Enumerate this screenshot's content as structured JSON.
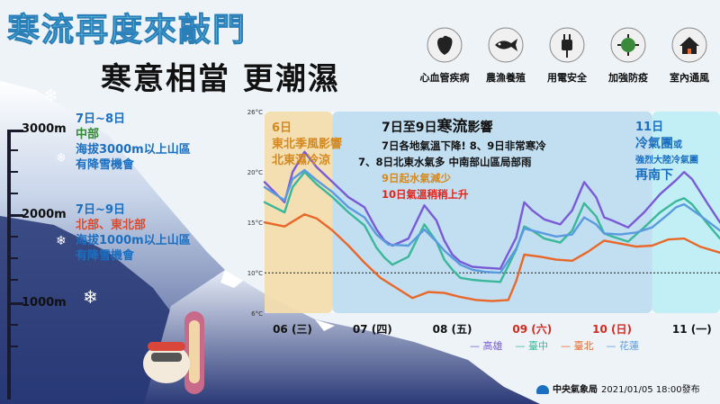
{
  "headline": {
    "main": "寒流再度來敲門",
    "sub": "寒意相當  更潮濕"
  },
  "icons": [
    {
      "label": "心血管疾病",
      "icon": "heart-organ-icon"
    },
    {
      "label": "農漁養殖",
      "icon": "fish-icon"
    },
    {
      "label": "用電安全",
      "icon": "plug-icon"
    },
    {
      "label": "加強防疫",
      "icon": "virus-icon"
    },
    {
      "label": "室內通風",
      "icon": "house-icon"
    }
  ],
  "altitudes": {
    "a3000": "3000m",
    "a2000": "2000m",
    "a1000": "1000m"
  },
  "snow_notes": {
    "n1_date": "7日~8日",
    "n1_region": "中部",
    "n1_line1": "海拔3000m以上山區",
    "n1_line2": "有降雪機會",
    "n2_date": "7日~9日",
    "n2_region": "北部、東北部",
    "n2_line1": "海拔1000m以上山區",
    "n2_line2": "有降雪機會"
  },
  "bands": {
    "b1_date": "6日",
    "b1_l1": "東北季風影響",
    "b1_l2": "北東濕冷涼",
    "b2_title_a": "7日至9日",
    "b2_title_b": "寒流",
    "b2_title_c": "影響",
    "b2_l1": "7日各地氣溫下降! 8、9日非常寒冷",
    "b2_l2": "7、8日北東水氣多  中南部山區局部雨",
    "b2_l3": "9日起水氣減少",
    "b2_l4": "10日氣溫稍稍上升",
    "b3_date": "11日",
    "b3_l1a": "冷氣團",
    "b3_l1b": "或",
    "b3_l2": "強烈大陸冷氣團",
    "b3_l3": "再南下"
  },
  "footer": {
    "agency": "中央氣象局",
    "issued": "2021/01/05 18:00發布"
  },
  "colors": {
    "kaohsiung": "#7a5bd6",
    "taichung": "#3ab89a",
    "taipei": "#e8682a",
    "hualien": "#5a9be0"
  },
  "chart_data": {
    "type": "line",
    "title": "",
    "xlabel": "",
    "ylabel": "",
    "x_ticks": [
      "06 (三)",
      "07 (四)",
      "08 (五)",
      "09 (六)",
      "10 (日)",
      "11 (一)"
    ],
    "x_tick_colors": [
      "#111111",
      "#111111",
      "#111111",
      "#d12a1f",
      "#d12a1f",
      "#111111"
    ],
    "y_ticks": [
      "26°C",
      "20°C",
      "15°C",
      "10°C",
      "6°C"
    ],
    "y_tick_values": [
      26,
      20,
      15,
      10,
      6
    ],
    "xlim": [
      5.75,
      11.45
    ],
    "ylim": [
      6,
      26
    ],
    "reference_line": 10,
    "highlight_bands": [
      {
        "from": 5.75,
        "to": 6.6,
        "color": "#f3d9a6"
      },
      {
        "from": 6.6,
        "to": 10.6,
        "color": "#b8d8ef"
      },
      {
        "from": 10.6,
        "to": 11.45,
        "color": "#b9ecf3"
      }
    ],
    "series": [
      {
        "name": "高雄",
        "color": "#7a5bd6",
        "x": [
          5.75,
          6.0,
          6.1,
          6.25,
          6.4,
          6.6,
          6.8,
          7.0,
          7.15,
          7.25,
          7.35,
          7.55,
          7.75,
          7.9,
          8.0,
          8.1,
          8.2,
          8.35,
          8.5,
          8.7,
          8.9,
          9.0,
          9.1,
          9.25,
          9.45,
          9.6,
          9.75,
          9.9,
          10.0,
          10.1,
          10.3,
          10.5,
          10.7,
          10.9,
          11.0,
          11.1,
          11.3,
          11.45
        ],
        "y": [
          19,
          17,
          20,
          22,
          20.5,
          19,
          17.5,
          16.5,
          14.3,
          13.2,
          12.7,
          13.4,
          16.7,
          15.2,
          13.2,
          11.8,
          11.1,
          10.6,
          10.5,
          10.4,
          13.5,
          17,
          16.2,
          15.3,
          14.8,
          16.2,
          19,
          17.5,
          15.5,
          15.2,
          14.5,
          16,
          17.8,
          19.2,
          20,
          19.3,
          16.8,
          15
        ]
      },
      {
        "name": "臺中",
        "color": "#3ab89a",
        "x": [
          5.75,
          6.0,
          6.1,
          6.25,
          6.4,
          6.6,
          6.8,
          7.0,
          7.15,
          7.25,
          7.35,
          7.55,
          7.75,
          7.9,
          8.0,
          8.1,
          8.2,
          8.35,
          8.5,
          8.7,
          8.9,
          9.0,
          9.1,
          9.25,
          9.45,
          9.6,
          9.75,
          9.9,
          10.0,
          10.1,
          10.3,
          10.5,
          10.7,
          10.9,
          11.0,
          11.1,
          11.3,
          11.45
        ],
        "y": [
          17,
          16,
          18.5,
          20,
          18.8,
          17.5,
          16,
          14.7,
          12.5,
          11.5,
          10.8,
          11.6,
          14.8,
          13.1,
          11.3,
          10.3,
          9.5,
          9.3,
          9.2,
          9.1,
          12.3,
          14.6,
          14.2,
          13.4,
          13,
          14.2,
          16.9,
          15.6,
          13.9,
          13.6,
          13.1,
          14.5,
          16,
          17.1,
          17.4,
          16.8,
          14.8,
          13.4
        ]
      },
      {
        "name": "臺北",
        "color": "#e8682a",
        "x": [
          5.75,
          6.0,
          6.25,
          6.4,
          6.6,
          6.8,
          7.0,
          7.2,
          7.4,
          7.6,
          7.8,
          8.0,
          8.2,
          8.4,
          8.6,
          8.8,
          8.9,
          9.0,
          9.2,
          9.4,
          9.6,
          9.8,
          10.0,
          10.2,
          10.4,
          10.6,
          10.8,
          11.0,
          11.2,
          11.45
        ],
        "y": [
          15,
          14.6,
          15.8,
          15.4,
          14.2,
          12.7,
          11,
          9.5,
          8.5,
          7.5,
          8.1,
          8,
          7.6,
          7.3,
          7.2,
          7.3,
          9.2,
          11.8,
          11.6,
          11.3,
          11.2,
          12.1,
          13.2,
          12.9,
          12.6,
          12.7,
          13.3,
          13.4,
          12.6,
          12
        ]
      },
      {
        "name": "花蓮",
        "color": "#5a9be0",
        "x": [
          5.75,
          6.0,
          6.1,
          6.25,
          6.4,
          6.6,
          6.8,
          7.0,
          7.15,
          7.3,
          7.55,
          7.75,
          7.9,
          8.0,
          8.2,
          8.35,
          8.5,
          8.7,
          8.9,
          9.0,
          9.2,
          9.4,
          9.6,
          9.75,
          9.9,
          10.0,
          10.2,
          10.4,
          10.6,
          10.8,
          10.9,
          11.0,
          11.2,
          11.45
        ],
        "y": [
          18.5,
          17.2,
          19.3,
          20.2,
          19.2,
          18,
          16.5,
          15.5,
          13.8,
          12.8,
          12.7,
          14.3,
          13.1,
          12.2,
          10.8,
          10.3,
          10.1,
          10,
          12.4,
          14.4,
          14,
          13.6,
          13.8,
          15.5,
          14.8,
          13.9,
          13.8,
          14,
          14.5,
          15.8,
          16.5,
          16.8,
          15.7,
          14.2
        ]
      }
    ]
  }
}
